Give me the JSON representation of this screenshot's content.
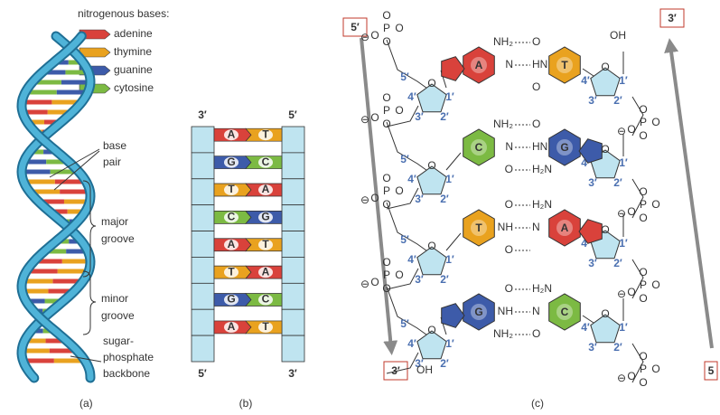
{
  "legend": {
    "title": "nitrogenous bases:",
    "items": [
      {
        "name": "adenine",
        "code": "A",
        "color": "#d9423b"
      },
      {
        "name": "thymine",
        "code": "T",
        "color": "#e9a21f"
      },
      {
        "name": "guanine",
        "code": "G",
        "color": "#3d5ba9"
      },
      {
        "name": "cytosine",
        "code": "C",
        "color": "#7cba43"
      }
    ]
  },
  "panel_a": {
    "base_pair": [
      "base",
      "pair"
    ],
    "major_groove": [
      "major",
      "groove"
    ],
    "minor_groove": [
      "minor",
      "groove"
    ],
    "backbone": [
      "sugar-",
      "phosphate",
      "backbone"
    ],
    "caption": "(a)"
  },
  "panel_b": {
    "top": [
      "3′",
      "5′"
    ],
    "bottom": [
      "5′",
      "3′"
    ],
    "pairs": [
      [
        "A",
        "T"
      ],
      [
        "G",
        "C"
      ],
      [
        "T",
        "A"
      ],
      [
        "C",
        "G"
      ],
      [
        "A",
        "T"
      ],
      [
        "T",
        "A"
      ],
      [
        "G",
        "C"
      ],
      [
        "A",
        "T"
      ]
    ],
    "caption": "(b)"
  },
  "panel_c": {
    "corners": [
      "5′",
      "3′",
      "3′",
      "5"
    ],
    "rows": [
      {
        "left": "A",
        "right": "T",
        "left_atoms": [
          "NH₂",
          "N"
        ],
        "right_atoms": [
          "O",
          "HN",
          "O"
        ]
      },
      {
        "left": "C",
        "right": "G",
        "left_atoms": [
          "NH₂",
          "N",
          "O"
        ],
        "right_atoms": [
          "O",
          "HN",
          "H₂N"
        ]
      },
      {
        "left": "T",
        "right": "A",
        "left_atoms": [
          "O",
          "NH",
          "O"
        ],
        "right_atoms": [
          "H₂N",
          "N"
        ]
      },
      {
        "left": "G",
        "right": "C",
        "left_atoms": [
          "O",
          "NH",
          "NH₂"
        ],
        "right_atoms": [
          "H₂N",
          "N",
          "O"
        ]
      }
    ],
    "sugar_numbers": [
      "1′",
      "2′",
      "3′",
      "4′",
      "5′"
    ],
    "ring_oxygen": "O",
    "phosphorus": "P",
    "oxygen": "O",
    "minus": "⊖",
    "hydroxyl": "OH",
    "caption": "(c)"
  }
}
